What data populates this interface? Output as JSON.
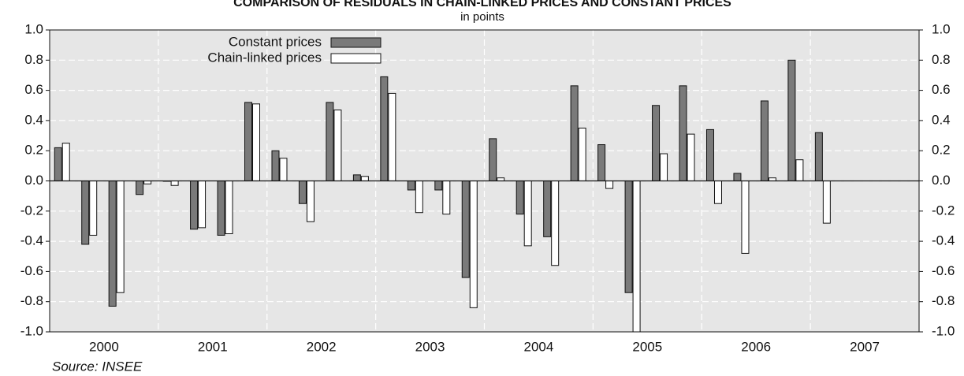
{
  "chart_data": {
    "type": "bar",
    "title": "COMPARISON OF RESIDUALS IN CHAIN-LINKED PRICES AND CONSTANT PRICES",
    "subtitle": "in points",
    "source": "Source: INSEE",
    "categories": [
      "2000",
      null,
      null,
      null,
      "2001",
      null,
      null,
      null,
      "2002",
      null,
      null,
      null,
      "2003",
      null,
      null,
      null,
      "2004",
      null,
      null,
      null,
      "2005",
      null,
      null,
      null,
      "2006",
      null,
      null,
      null,
      "2007",
      null,
      null,
      null
    ],
    "series": [
      {
        "name": "Constant prices",
        "color": "#7a7a7a",
        "values": [
          0.22,
          -0.42,
          -0.83,
          -0.09,
          0.0,
          -0.32,
          -0.36,
          0.52,
          0.2,
          -0.15,
          0.52,
          0.04,
          0.69,
          -0.06,
          -0.06,
          -0.64,
          0.28,
          -0.22,
          -0.37,
          0.63,
          0.24,
          -0.74,
          0.5,
          0.63,
          0.34,
          0.05,
          0.53,
          0.8,
          0.32,
          null,
          null,
          null
        ]
      },
      {
        "name": "Chain-linked prices",
        "color": "#ffffff",
        "values": [
          0.25,
          -0.36,
          -0.74,
          -0.02,
          -0.03,
          -0.31,
          -0.35,
          0.51,
          0.15,
          -0.27,
          0.47,
          0.03,
          0.58,
          -0.21,
          -0.22,
          -0.84,
          0.02,
          -0.43,
          -0.56,
          0.35,
          -0.05,
          -1.0,
          0.18,
          0.31,
          -0.15,
          -0.48,
          0.02,
          0.14,
          -0.28,
          null,
          null,
          null
        ]
      }
    ],
    "ylim": [
      -1.0,
      1.0
    ],
    "yticks": [
      {
        "value": -1.0,
        "label": "-1.0"
      },
      -0.8,
      -0.6,
      -0.4,
      -0.2,
      {
        "value": 0,
        "label": "0.0"
      },
      0.2,
      0.4,
      0.6,
      0.8,
      {
        "value": 1.0,
        "label": "1.0"
      }
    ],
    "y2lim": [
      -1.0,
      1.0
    ],
    "y2ticks": [
      {
        "value": -1.0,
        "label": "-1.0"
      },
      -0.8,
      -0.6,
      -0.4,
      -0.2,
      {
        "value": 0,
        "label": "0.0"
      },
      0.2,
      0.4,
      0.6,
      0.8,
      {
        "value": 1.0,
        "label": "1.0"
      }
    ],
    "grid": true,
    "legend": "top-left"
  }
}
